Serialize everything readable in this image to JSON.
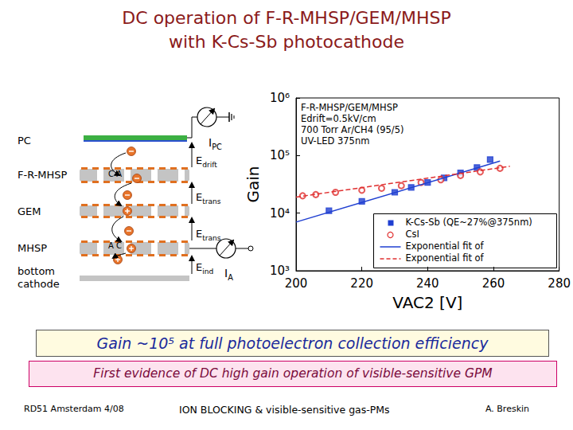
{
  "slide": {
    "title": [
      "DC operation of F-R-MHSP/GEM/MHSP",
      "with K-Cs-Sb photocathode"
    ],
    "highlight": "Gain ~10⁵ at full photoelectron collection efficiency",
    "conclusion": "First evidence of DC high gain operation of visible-sensitive GPM",
    "footer": [
      "RD51 Amsterdam 4/08",
      "ION BLOCKING & visible-sensitive gas-PMs",
      "A. Breskin"
    ]
  },
  "diagram": {
    "layers": [
      {
        "label": [
          "PC"
        ]
      },
      {
        "label": [
          "F-R-MHSP"
        ]
      },
      {
        "label": [
          "GEM"
        ]
      },
      {
        "label": [
          "MHSP"
        ]
      },
      {
        "label": [
          "bottom",
          "cathode"
        ]
      }
    ],
    "fields": [
      {
        "text": "E",
        "sub": "drift"
      },
      {
        "text": "E",
        "sub": "trans"
      },
      {
        "text": "E",
        "sub": "trans"
      },
      {
        "text": "E",
        "sub": "ind"
      }
    ],
    "currents": [
      {
        "text": "I",
        "sub": "PC"
      },
      {
        "text": "I",
        "sub": "A"
      }
    ],
    "electrode_marks": [
      "C A",
      "A C"
    ]
  },
  "chart_data": {
    "type": "scatter",
    "x_label": "VAC2 [V]",
    "y_label": "Gain",
    "annotations": [
      "F-R-MHSP/GEM/MHSP",
      "Edrift=0.5kV/cm",
      "700 Torr Ar/CH4 (95/5)",
      "UV-LED 375nm"
    ],
    "xlim": [
      200,
      280
    ],
    "xticks": [
      200,
      220,
      240,
      260,
      280
    ],
    "ylim": [
      1000,
      1000000
    ],
    "yticks": [
      {
        "value": 1000,
        "label": "10³"
      },
      {
        "value": 10000,
        "label": "10⁴"
      },
      {
        "value": 100000,
        "label": "10⁵"
      },
      {
        "value": 1000000,
        "label": "10⁶"
      }
    ],
    "log": "y",
    "grid": false,
    "legend": "lower right",
    "series": [
      {
        "name": "K-Cs-Sb (QE~27%@375nm)",
        "type": "scatter",
        "color": "#1f3fd1",
        "marker": "square",
        "x": [
          210,
          220,
          230,
          235,
          240,
          245,
          250,
          255,
          259
        ],
        "values": [
          11000,
          16000,
          23000,
          28000,
          34000,
          41000,
          50000,
          62000,
          85000
        ]
      },
      {
        "name": "CsI",
        "type": "scatter",
        "color": "#e03030",
        "marker": "open_circle",
        "x": [
          202,
          206,
          212,
          220,
          226,
          232,
          238,
          244,
          250,
          256,
          262
        ],
        "values": [
          20000,
          21000,
          23000,
          25000,
          27000,
          30000,
          34000,
          38000,
          45000,
          52000,
          60000
        ]
      },
      {
        "name": "Exponential fit of",
        "type": "line",
        "color": "#1f3fd1",
        "line_style": "solid",
        "x": [
          200,
          262
        ],
        "values": [
          7000,
          80000
        ]
      },
      {
        "name": "Exponential fit of",
        "type": "line",
        "color": "#e03030",
        "line_style": "dashed",
        "x": [
          200,
          265
        ],
        "values": [
          19000,
          65000
        ]
      }
    ]
  }
}
